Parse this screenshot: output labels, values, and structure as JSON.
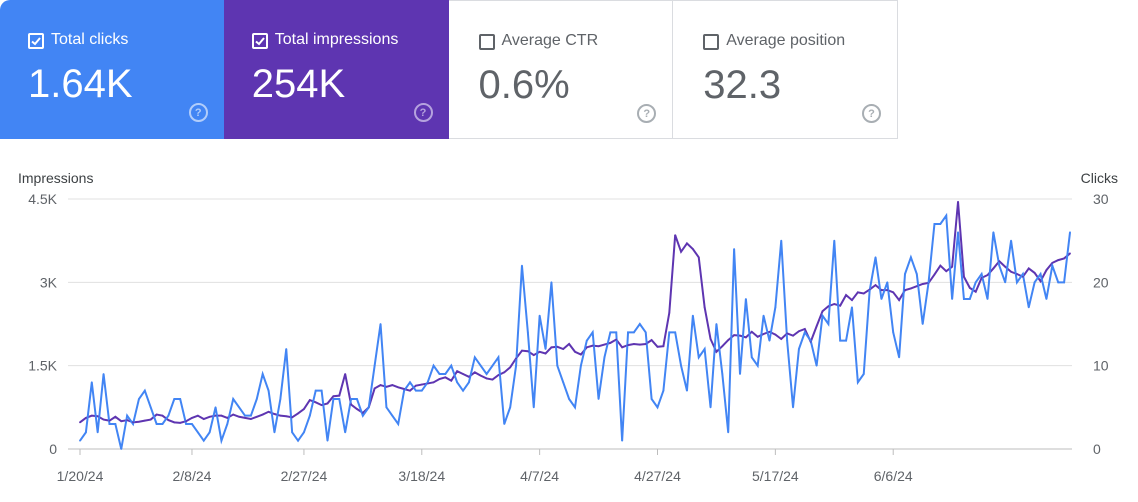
{
  "metrics": [
    {
      "label": "Total clicks",
      "value": "1.64K",
      "checked": true
    },
    {
      "label": "Total impressions",
      "value": "254K",
      "checked": true
    },
    {
      "label": "Average CTR",
      "value": "0.6%",
      "checked": false
    },
    {
      "label": "Average position",
      "value": "32.3",
      "checked": false
    }
  ],
  "help_glyph": "?",
  "colors": {
    "clicks": "#4285f4",
    "impressions": "#5e35b1",
    "grid": "#e0e0e0"
  },
  "chart_data": {
    "type": "line",
    "ylabel_left": "Impressions",
    "ylabel_right": "Clicks",
    "yticks_left": [
      "0",
      "1.5K",
      "3K",
      "4.5K"
    ],
    "yticks_right": [
      "0",
      "10",
      "20",
      "30"
    ],
    "xticks": [
      "1/20/24",
      "2/8/24",
      "2/27/24",
      "3/18/24",
      "4/7/24",
      "4/27/24",
      "5/17/24",
      "6/6/24"
    ],
    "ylim_left": [
      0,
      4500
    ],
    "ylim_right": [
      0,
      30
    ],
    "x_start": "2024-01-20",
    "series": [
      {
        "name": "Impressions",
        "axis": "left",
        "color": "#5e35b1",
        "values": [
          480,
          560,
          600,
          590,
          530,
          510,
          580,
          500,
          520,
          480,
          490,
          510,
          530,
          620,
          600,
          520,
          480,
          470,
          500,
          560,
          600,
          540,
          580,
          600,
          600,
          560,
          620,
          580,
          560,
          540,
          580,
          620,
          670,
          630,
          600,
          590,
          570,
          640,
          720,
          880,
          840,
          790,
          820,
          950,
          960,
          1350,
          800,
          720,
          650,
          750,
          1090,
          1150,
          1120,
          1150,
          1110,
          1080,
          1050,
          1140,
          1160,
          1180,
          1200,
          1260,
          1290,
          1230,
          1400,
          1350,
          1300,
          1380,
          1320,
          1270,
          1250,
          1330,
          1380,
          1470,
          1630,
          1770,
          1760,
          1690,
          1750,
          1720,
          1830,
          1840,
          1800,
          1890,
          1750,
          1700,
          1830,
          1860,
          1850,
          1880,
          1910,
          1970,
          1830,
          1870,
          1890,
          1880,
          1890,
          1960,
          1840,
          1850,
          2450,
          3850,
          3550,
          3700,
          3600,
          3450,
          2550,
          1980,
          1750,
          1850,
          1960,
          2050,
          2040,
          2010,
          2110,
          2020,
          2070,
          2110,
          2060,
          1980,
          2080,
          2040,
          2120,
          2160,
          1930,
          2210,
          2480,
          2570,
          2610,
          2580,
          2770,
          2680,
          2820,
          2800,
          2870,
          2950,
          2860,
          2860,
          2820,
          2680,
          2860,
          2890,
          2930,
          2970,
          2990,
          3140,
          3300,
          3200,
          3280,
          4450,
          3100,
          2900,
          2830,
          3080,
          3130,
          3250,
          3380,
          3280,
          3190,
          3150,
          3100,
          3250,
          3170,
          3020,
          3220,
          3350,
          3400,
          3430,
          3520
        ]
      },
      {
        "name": "Clicks",
        "axis": "right",
        "color": "#4285f4",
        "values": [
          1,
          2,
          8,
          2,
          9,
          3,
          3,
          0,
          4,
          3,
          6,
          7,
          5,
          3,
          3,
          4,
          6,
          6,
          3,
          3,
          2,
          1,
          2,
          5,
          1,
          3,
          6,
          5,
          4,
          4,
          6,
          9,
          7,
          2,
          6,
          12,
          2,
          1,
          2,
          4,
          7,
          7,
          1,
          6,
          6,
          2,
          6,
          6,
          4,
          5,
          10,
          15,
          5,
          4,
          3,
          7,
          8,
          7,
          7,
          8,
          10,
          9,
          9,
          10,
          8,
          7,
          8,
          11,
          10,
          9,
          10,
          11,
          3,
          5,
          10,
          22,
          14,
          5,
          16,
          12,
          20,
          10,
          8,
          6,
          5,
          10,
          13,
          14,
          6,
          11,
          14,
          14,
          1,
          14,
          14,
          15,
          14,
          6,
          5,
          7,
          14,
          14,
          10,
          7,
          16,
          11,
          12,
          5,
          15,
          9,
          2,
          24,
          9,
          18,
          11,
          10,
          16,
          13,
          17,
          25,
          13,
          5,
          12,
          14,
          13,
          10,
          16,
          15,
          25,
          13,
          13,
          17,
          8,
          9,
          19,
          23,
          18,
          20,
          14,
          11,
          21,
          23,
          21,
          15,
          20,
          27,
          27,
          28,
          18,
          26,
          18,
          18,
          20,
          21,
          18,
          26,
          22,
          20,
          25,
          20,
          21,
          17,
          20,
          21,
          18,
          22,
          20,
          20,
          26
        ]
      }
    ]
  }
}
